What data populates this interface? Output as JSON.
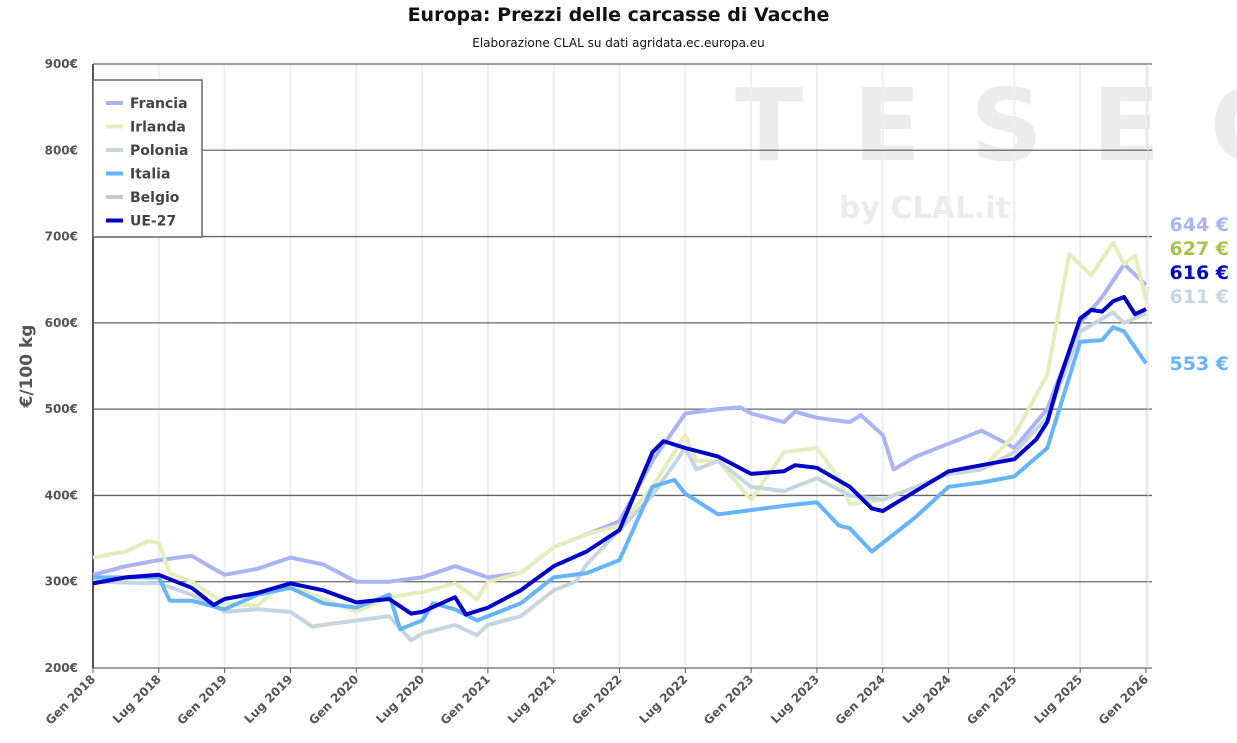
{
  "chart_data": {
    "type": "line",
    "title": "Europa: Prezzi delle carcasse di Vacche",
    "subtitle": "Elaborazione CLAL su dati agridata.ec.europa.eu",
    "ylabel": "€/100 kg",
    "ylim": [
      200,
      900
    ],
    "yticks": [
      "200€",
      "300€",
      "400€",
      "500€",
      "600€",
      "700€",
      "800€",
      "900€"
    ],
    "xlim": [
      "2018-01",
      "2026-01"
    ],
    "xticks": [
      "Gen 2018",
      "Lug 2018",
      "Gen 2019",
      "Lug 2019",
      "Gen 2020",
      "Lug 2020",
      "Gen 2021",
      "Lug 2021",
      "Gen 2022",
      "Lug 2022",
      "Gen 2023",
      "Lug 2023",
      "Gen 2024",
      "Lug 2024",
      "Gen 2025",
      "Lug 2025",
      "Gen 2026"
    ],
    "grid": true,
    "legend_position": "top-left",
    "watermark": {
      "main": "TESEO",
      "sub": "by CLAL.it"
    },
    "series": [
      {
        "name": "Francia",
        "color": "#a9b4f5",
        "last_label": "644 €",
        "points": [
          [
            "2018-01",
            308
          ],
          [
            "2018-04",
            318
          ],
          [
            "2018-07",
            325
          ],
          [
            "2018-10",
            330
          ],
          [
            "2018-12",
            315
          ],
          [
            "2019-01",
            308
          ],
          [
            "2019-04",
            315
          ],
          [
            "2019-07",
            328
          ],
          [
            "2019-10",
            320
          ],
          [
            "2020-01",
            300
          ],
          [
            "2020-04",
            300
          ],
          [
            "2020-07",
            305
          ],
          [
            "2020-10",
            318
          ],
          [
            "2021-01",
            305
          ],
          [
            "2021-04",
            310
          ],
          [
            "2021-07",
            340
          ],
          [
            "2021-10",
            355
          ],
          [
            "2022-01",
            370
          ],
          [
            "2022-04",
            440
          ],
          [
            "2022-07",
            495
          ],
          [
            "2022-10",
            500
          ],
          [
            "2022-12",
            502
          ],
          [
            "2023-01",
            495
          ],
          [
            "2023-04",
            485
          ],
          [
            "2023-05",
            497
          ],
          [
            "2023-07",
            490
          ],
          [
            "2023-10",
            485
          ],
          [
            "2023-11",
            493
          ],
          [
            "2024-01",
            470
          ],
          [
            "2024-02",
            430
          ],
          [
            "2024-04",
            445
          ],
          [
            "2024-07",
            460
          ],
          [
            "2024-10",
            475
          ],
          [
            "2024-12",
            462
          ],
          [
            "2025-01",
            455
          ],
          [
            "2025-04",
            500
          ],
          [
            "2025-07",
            600
          ],
          [
            "2025-09",
            630
          ],
          [
            "2025-11",
            668
          ],
          [
            "2026-01",
            644
          ]
        ]
      },
      {
        "name": "Irlanda",
        "color": "#e3eebc",
        "label_color": "#a8c24a",
        "last_label": "627 €",
        "points": [
          [
            "2018-01",
            328
          ],
          [
            "2018-04",
            335
          ],
          [
            "2018-06",
            347
          ],
          [
            "2018-07",
            345
          ],
          [
            "2018-08",
            310
          ],
          [
            "2018-10",
            300
          ],
          [
            "2019-01",
            275
          ],
          [
            "2019-04",
            272
          ],
          [
            "2019-06",
            295
          ],
          [
            "2019-07",
            295
          ],
          [
            "2019-10",
            280
          ],
          [
            "2020-01",
            265
          ],
          [
            "2020-04",
            282
          ],
          [
            "2020-07",
            288
          ],
          [
            "2020-10",
            298
          ],
          [
            "2020-12",
            280
          ],
          [
            "2021-01",
            300
          ],
          [
            "2021-04",
            310
          ],
          [
            "2021-07",
            340
          ],
          [
            "2021-10",
            355
          ],
          [
            "2022-01",
            365
          ],
          [
            "2022-04",
            410
          ],
          [
            "2022-07",
            470
          ],
          [
            "2022-08",
            440
          ],
          [
            "2022-10",
            440
          ],
          [
            "2023-01",
            395
          ],
          [
            "2023-04",
            450
          ],
          [
            "2023-07",
            455
          ],
          [
            "2023-09",
            420
          ],
          [
            "2023-10",
            390
          ],
          [
            "2024-01",
            395
          ],
          [
            "2024-04",
            410
          ],
          [
            "2024-07",
            425
          ],
          [
            "2024-10",
            430
          ],
          [
            "2025-01",
            470
          ],
          [
            "2025-04",
            540
          ],
          [
            "2025-06",
            680
          ],
          [
            "2025-08",
            655
          ],
          [
            "2025-10",
            693
          ],
          [
            "2025-11",
            668
          ],
          [
            "2025-12",
            678
          ],
          [
            "2026-01",
            627
          ]
        ]
      },
      {
        "name": "Polonia",
        "color": "#c5d6e0",
        "last_label": "611 €",
        "points": [
          [
            "2018-01",
            300
          ],
          [
            "2018-07",
            298
          ],
          [
            "2018-10",
            285
          ],
          [
            "2019-01",
            265
          ],
          [
            "2019-04",
            268
          ],
          [
            "2019-07",
            265
          ],
          [
            "2019-09",
            248
          ],
          [
            "2019-10",
            250
          ],
          [
            "2020-01",
            255
          ],
          [
            "2020-04",
            260
          ],
          [
            "2020-06",
            232
          ],
          [
            "2020-07",
            240
          ],
          [
            "2020-10",
            250
          ],
          [
            "2020-12",
            238
          ],
          [
            "2021-01",
            250
          ],
          [
            "2021-04",
            260
          ],
          [
            "2021-07",
            290
          ],
          [
            "2021-09",
            300
          ],
          [
            "2021-10",
            320
          ],
          [
            "2022-01",
            360
          ],
          [
            "2022-04",
            400
          ],
          [
            "2022-07",
            455
          ],
          [
            "2022-08",
            430
          ],
          [
            "2022-10",
            440
          ],
          [
            "2023-01",
            410
          ],
          [
            "2023-04",
            405
          ],
          [
            "2023-07",
            420
          ],
          [
            "2023-10",
            400
          ],
          [
            "2024-01",
            395
          ],
          [
            "2024-04",
            410
          ],
          [
            "2024-07",
            425
          ],
          [
            "2024-10",
            430
          ],
          [
            "2025-01",
            450
          ],
          [
            "2025-04",
            490
          ],
          [
            "2025-07",
            590
          ],
          [
            "2025-10",
            612
          ],
          [
            "2025-11",
            600
          ],
          [
            "2026-01",
            611
          ]
        ]
      },
      {
        "name": "Italia",
        "color": "#66b5fb",
        "last_label": "553 €",
        "points": [
          [
            "2018-01",
            305
          ],
          [
            "2018-04",
            305
          ],
          [
            "2018-07",
            305
          ],
          [
            "2018-08",
            278
          ],
          [
            "2018-10",
            278
          ],
          [
            "2019-01",
            268
          ],
          [
            "2019-04",
            285
          ],
          [
            "2019-07",
            293
          ],
          [
            "2019-10",
            275
          ],
          [
            "2020-01",
            270
          ],
          [
            "2020-04",
            285
          ],
          [
            "2020-05",
            245
          ],
          [
            "2020-07",
            255
          ],
          [
            "2020-08",
            275
          ],
          [
            "2020-10",
            268
          ],
          [
            "2020-12",
            255
          ],
          [
            "2021-01",
            260
          ],
          [
            "2021-04",
            275
          ],
          [
            "2021-07",
            305
          ],
          [
            "2021-10",
            310
          ],
          [
            "2022-01",
            325
          ],
          [
            "2022-04",
            410
          ],
          [
            "2022-06",
            418
          ],
          [
            "2022-07",
            402
          ],
          [
            "2022-10",
            378
          ],
          [
            "2023-01",
            383
          ],
          [
            "2023-04",
            388
          ],
          [
            "2023-07",
            392
          ],
          [
            "2023-09",
            365
          ],
          [
            "2023-10",
            362
          ],
          [
            "2023-12",
            335
          ],
          [
            "2024-01",
            345
          ],
          [
            "2024-04",
            375
          ],
          [
            "2024-07",
            410
          ],
          [
            "2024-10",
            415
          ],
          [
            "2025-01",
            422
          ],
          [
            "2025-04",
            455
          ],
          [
            "2025-07",
            578
          ],
          [
            "2025-09",
            580
          ],
          [
            "2025-10",
            595
          ],
          [
            "2025-11",
            590
          ],
          [
            "2026-01",
            553
          ]
        ]
      },
      {
        "name": "Belgio",
        "color": "#c8c8c8",
        "hidden": true,
        "points": []
      },
      {
        "name": "UE-27",
        "color": "#0000c8",
        "last_label": "616 €",
        "points": [
          [
            "2018-01",
            298
          ],
          [
            "2018-04",
            305
          ],
          [
            "2018-07",
            308
          ],
          [
            "2018-10",
            293
          ],
          [
            "2018-12",
            273
          ],
          [
            "2019-01",
            280
          ],
          [
            "2019-04",
            287
          ],
          [
            "2019-07",
            298
          ],
          [
            "2019-10",
            290
          ],
          [
            "2020-01",
            276
          ],
          [
            "2020-04",
            280
          ],
          [
            "2020-06",
            263
          ],
          [
            "2020-07",
            265
          ],
          [
            "2020-10",
            282
          ],
          [
            "2020-11",
            262
          ],
          [
            "2021-01",
            270
          ],
          [
            "2021-04",
            290
          ],
          [
            "2021-07",
            318
          ],
          [
            "2021-10",
            335
          ],
          [
            "2022-01",
            360
          ],
          [
            "2022-04",
            450
          ],
          [
            "2022-05",
            463
          ],
          [
            "2022-07",
            455
          ],
          [
            "2022-10",
            445
          ],
          [
            "2023-01",
            425
          ],
          [
            "2023-04",
            428
          ],
          [
            "2023-05",
            435
          ],
          [
            "2023-07",
            432
          ],
          [
            "2023-10",
            410
          ],
          [
            "2023-12",
            385
          ],
          [
            "2024-01",
            382
          ],
          [
            "2024-04",
            405
          ],
          [
            "2024-07",
            428
          ],
          [
            "2024-10",
            435
          ],
          [
            "2025-01",
            442
          ],
          [
            "2025-03",
            465
          ],
          [
            "2025-04",
            485
          ],
          [
            "2025-05",
            530
          ],
          [
            "2025-07",
            605
          ],
          [
            "2025-08",
            615
          ],
          [
            "2025-09",
            613
          ],
          [
            "2025-10",
            625
          ],
          [
            "2025-11",
            630
          ],
          [
            "2025-12",
            610
          ],
          [
            "2026-01",
            616
          ]
        ]
      }
    ]
  }
}
